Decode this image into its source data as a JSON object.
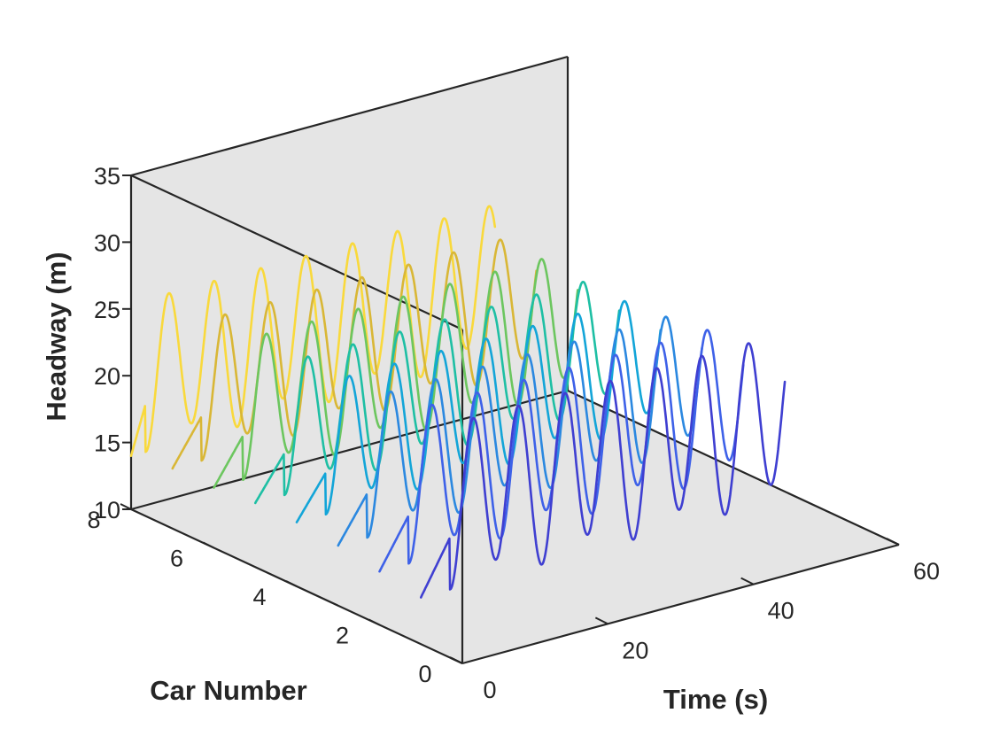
{
  "chart_data": {
    "type": "line",
    "view": "3d",
    "xlabel": "Time (s)",
    "ylabel": "Car Number",
    "zlabel": "Headway (m)",
    "xlim": [
      0,
      60
    ],
    "ylim": [
      0,
      8
    ],
    "zlim": [
      10,
      35
    ],
    "xticks": [
      0,
      20,
      40,
      60
    ],
    "yticks": [
      0,
      2,
      4,
      6,
      8
    ],
    "zticks": [
      10,
      15,
      20,
      25,
      30,
      35
    ],
    "grid": false,
    "series": [
      {
        "car": 1,
        "color": "#3f3fd1",
        "t_start": 0,
        "t_end": 50,
        "onset": 4,
        "period": 6.3,
        "base": 20,
        "amplitude": 6.5
      },
      {
        "car": 2,
        "color": "#3e61e8",
        "t_start": 0,
        "t_end": 50,
        "onset": 4,
        "period": 6.3,
        "base": 20,
        "amplitude": 6.0
      },
      {
        "car": 3,
        "color": "#2b88e0",
        "t_start": 0,
        "t_end": 50,
        "onset": 4,
        "period": 6.3,
        "base": 20,
        "amplitude": 5.5
      },
      {
        "car": 4,
        "color": "#13a5d8",
        "t_start": 0,
        "t_end": 50,
        "onset": 4,
        "period": 6.3,
        "base": 20,
        "amplitude": 5.2
      },
      {
        "car": 5,
        "color": "#1ebfa4",
        "t_start": 0,
        "t_end": 50,
        "onset": 4,
        "period": 6.3,
        "base": 20,
        "amplitude": 5.2
      },
      {
        "car": 6,
        "color": "#6cc65f",
        "t_start": 0,
        "t_end": 50,
        "onset": 4,
        "period": 6.3,
        "base": 20,
        "amplitude": 5.5
      },
      {
        "car": 7,
        "color": "#d9b736",
        "t_start": 0,
        "t_end": 50,
        "onset": 4,
        "period": 6.3,
        "base": 20,
        "amplitude": 5.5
      },
      {
        "car": 8,
        "color": "#f9d93c",
        "t_start": 0,
        "t_end": 50,
        "onset": 2,
        "period": 6.3,
        "base": 20,
        "amplitude": 6.0
      }
    ]
  }
}
